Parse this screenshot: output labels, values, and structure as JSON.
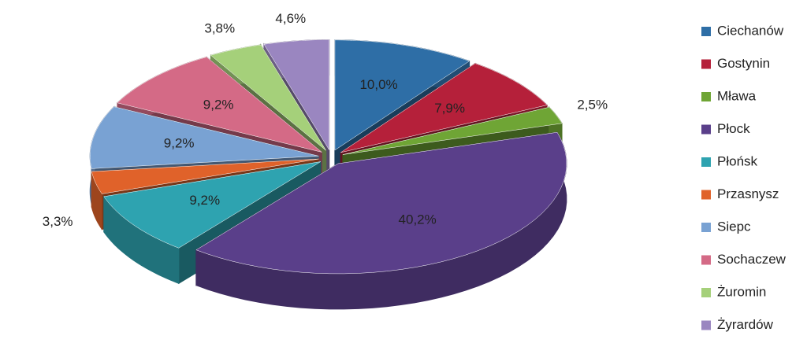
{
  "chart_data": {
    "type": "pie",
    "categories": [
      "Ciechanów",
      "Gostynin",
      "Mława",
      "Płock",
      "Płońsk",
      "Przasnysz",
      "Siepc",
      "Sochaczew",
      "Żuromin",
      "Żyrardów"
    ],
    "values": [
      10.0,
      7.9,
      2.5,
      40.2,
      9.2,
      3.3,
      9.2,
      9.2,
      3.8,
      4.6
    ],
    "value_labels": [
      "10,0%",
      "7,9%",
      "2,5%",
      "40,2%",
      "9,2%",
      "3,3%",
      "9,2%",
      "9,2%",
      "3,8%",
      "4,6%"
    ],
    "colors": [
      "#2e6ea6",
      "#b5203a",
      "#6fa535",
      "#5a3f8a",
      "#2ea3b0",
      "#e0622a",
      "#79a2d3",
      "#d46a86",
      "#a5d07a",
      "#9a86c0"
    ],
    "legend": "right"
  }
}
